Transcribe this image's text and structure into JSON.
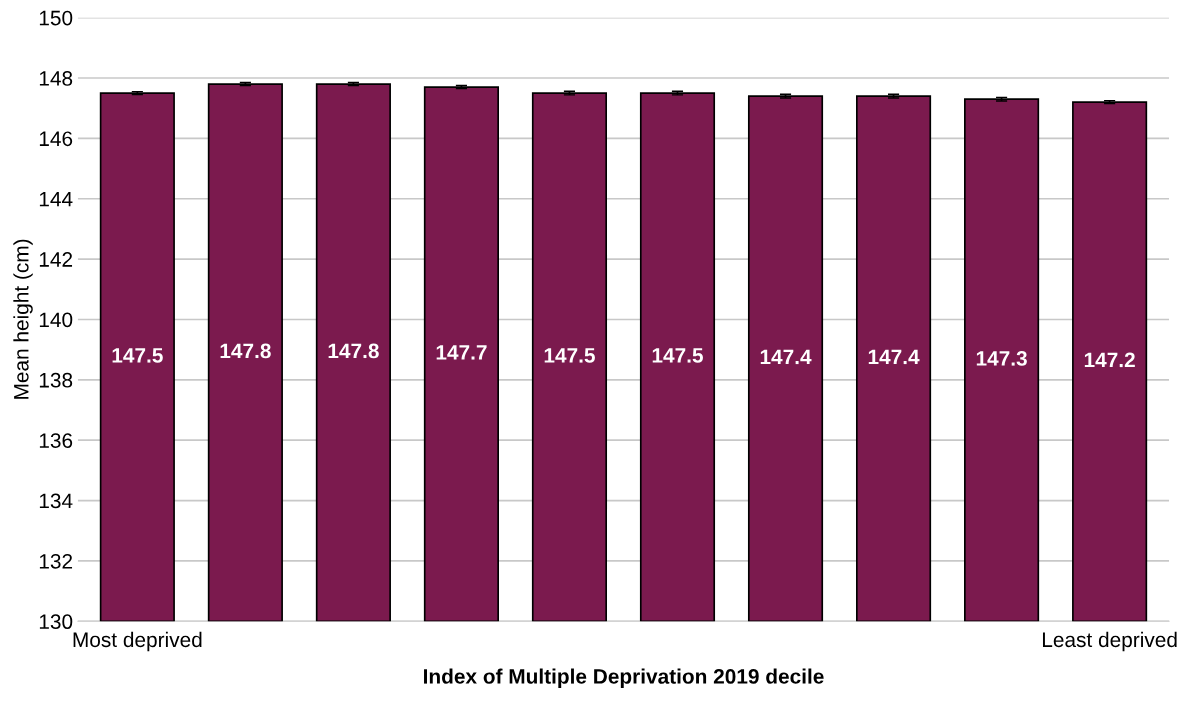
{
  "chart_data": {
    "type": "bar",
    "xlabel": "Index of Multiple Deprivation 2019 decile",
    "ylabel": "Mean height (cm)",
    "categories": [
      "Most deprived",
      null,
      null,
      null,
      null,
      null,
      null,
      null,
      null,
      "Least deprived"
    ],
    "values": [
      147.5,
      147.8,
      147.8,
      147.7,
      147.5,
      147.5,
      147.4,
      147.4,
      147.3,
      147.2
    ],
    "errors": [
      0.05,
      0.05,
      0.05,
      0.05,
      0.06,
      0.06,
      0.06,
      0.06,
      0.06,
      0.05
    ],
    "color": "#7b1a4e",
    "ylim": [
      130,
      150
    ],
    "yticks": [
      130,
      132,
      134,
      136,
      138,
      140,
      142,
      144,
      146,
      148,
      150
    ],
    "grid": "y",
    "data_labels": true
  }
}
